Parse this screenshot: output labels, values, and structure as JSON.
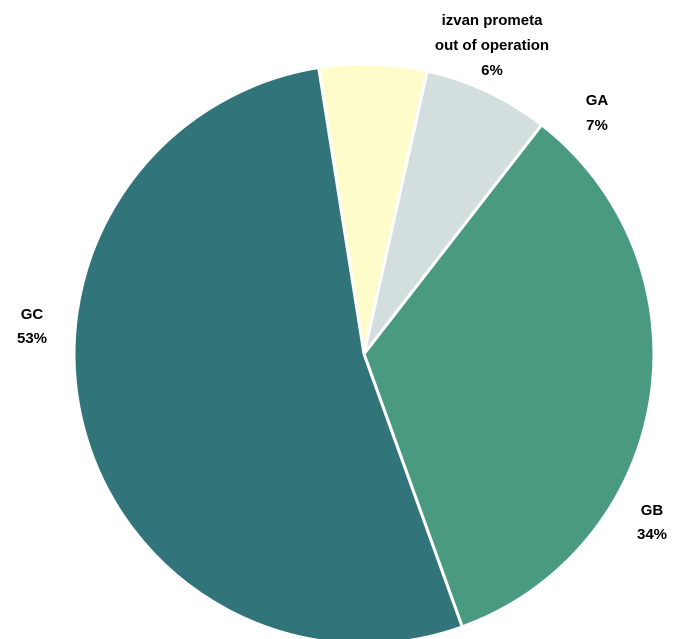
{
  "chart_data": {
    "type": "pie",
    "title": "",
    "start_angle_deg": -9,
    "direction": "clockwise",
    "slices": [
      {
        "name": "izvan prometa",
        "name2": "out of operation",
        "value": 6,
        "label": "6%",
        "color": "#FFFCCB"
      },
      {
        "name": "GA",
        "value": 7,
        "label": "7%",
        "color": "#D3DFDF"
      },
      {
        "name": "GB",
        "value": 34,
        "label": "34%",
        "color": "#4A9A82"
      },
      {
        "name": "GC",
        "value": 53,
        "label": "53%",
        "color": "#31757B"
      }
    ]
  }
}
